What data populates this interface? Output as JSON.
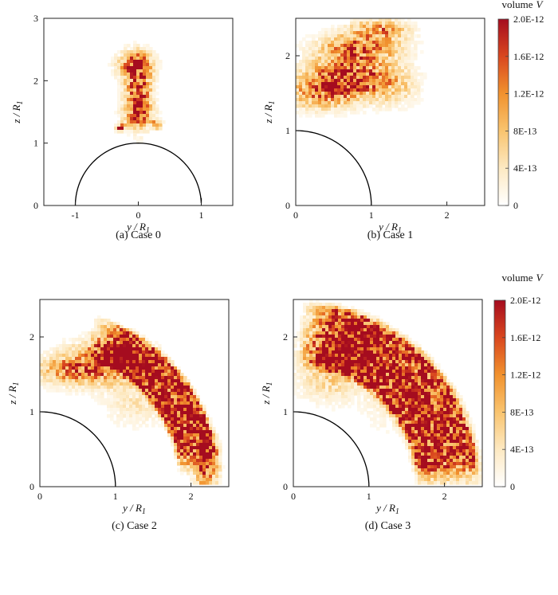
{
  "chart_data": [
    {
      "type": "heatmap",
      "caption": "(a) Case 0",
      "xlabel": "y / R",
      "ylabel": "z / R",
      "label_subscript": "1",
      "xlim": [
        -1.5,
        1.5
      ],
      "ylim": [
        0,
        3
      ],
      "xticks": [
        -1,
        0,
        1
      ],
      "yticks": [
        0,
        1,
        2,
        3
      ],
      "boundary": {
        "shape": "semicircle",
        "radius": 1,
        "theta_deg": [
          0,
          180
        ]
      },
      "blobs": [
        {
          "y": 0.0,
          "z": 1.8,
          "sy": 0.13,
          "sz": 0.32,
          "peak": 2e-12
        },
        {
          "y": -0.05,
          "z": 2.25,
          "sy": 0.18,
          "sz": 0.14,
          "peak": 1.6e-12
        },
        {
          "y": 0.0,
          "z": 1.45,
          "sy": 0.16,
          "sz": 0.12,
          "peak": 1e-12
        },
        {
          "y": -0.28,
          "z": 1.25,
          "sy": 0.05,
          "sz": 0.04,
          "peak": 1.8e-12
        },
        {
          "y": 0.28,
          "z": 1.3,
          "sy": 0.06,
          "sz": 0.05,
          "peak": 1e-12
        }
      ],
      "colorbar": false
    },
    {
      "type": "heatmap",
      "caption": "(b) Case 1",
      "xlabel": "y / R",
      "ylabel": "z / R",
      "label_subscript": "1",
      "xlim": [
        0,
        2.5
      ],
      "ylim": [
        0,
        2.5
      ],
      "xticks": [
        0,
        1,
        2
      ],
      "yticks": [
        0,
        1,
        2
      ],
      "boundary": {
        "shape": "quarter-circle",
        "radius": 1,
        "theta_deg": [
          0,
          90
        ]
      },
      "blobs": [
        {
          "y": 0.7,
          "z": 1.7,
          "sy": 0.35,
          "sz": 0.18,
          "peak": 2e-12
        },
        {
          "y": 0.85,
          "z": 2.1,
          "sy": 0.35,
          "sz": 0.13,
          "peak": 1.5e-12
        },
        {
          "y": 0.3,
          "z": 1.5,
          "sy": 0.3,
          "sz": 0.15,
          "peak": 1e-12
        },
        {
          "y": 1.3,
          "z": 1.6,
          "sy": 0.22,
          "sz": 0.18,
          "peak": 6e-13
        },
        {
          "y": 1.1,
          "z": 2.35,
          "sy": 0.25,
          "sz": 0.09,
          "peak": 1.2e-12
        }
      ],
      "colorbar": true
    },
    {
      "type": "heatmap",
      "caption": "(c) Case 2",
      "xlabel": "y / R",
      "ylabel": "z / R",
      "label_subscript": "1",
      "xlim": [
        0,
        2.5
      ],
      "ylim": [
        0,
        2.5
      ],
      "xticks": [
        0,
        1,
        2
      ],
      "yticks": [
        0,
        1,
        2
      ],
      "boundary": {
        "shape": "quarter-circle",
        "radius": 1,
        "theta_deg": [
          0,
          90
        ]
      },
      "band": {
        "r_inner": 1.9,
        "r_outer": 2.35,
        "theta_deg": [
          10,
          65
        ],
        "peak": 2e-12
      },
      "blobs": [
        {
          "y": 0.9,
          "z": 1.65,
          "sy": 0.35,
          "sz": 0.18,
          "peak": 1.8e-12
        },
        {
          "y": 0.35,
          "z": 1.55,
          "sy": 0.25,
          "sz": 0.13,
          "peak": 1e-12
        },
        {
          "y": 2.2,
          "z": 0.3,
          "sy": 0.1,
          "sz": 0.25,
          "peak": 1.7e-12
        },
        {
          "y": 1.3,
          "z": 1.1,
          "sy": 0.3,
          "sz": 0.2,
          "peak": 4e-13
        }
      ],
      "colorbar": false
    },
    {
      "type": "heatmap",
      "caption": "(d) Case 3",
      "xlabel": "y / R",
      "ylabel": "z / R",
      "label_subscript": "1",
      "xlim": [
        0,
        2.5
      ],
      "ylim": [
        0,
        2.5
      ],
      "xticks": [
        0,
        1,
        2
      ],
      "yticks": [
        0,
        1,
        2
      ],
      "boundary": {
        "shape": "quarter-circle",
        "radius": 1,
        "theta_deg": [
          0,
          90
        ]
      },
      "band": {
        "r_inner": 1.7,
        "r_outer": 2.4,
        "theta_deg": [
          5,
          80
        ],
        "peak": 2e-12
      },
      "blobs": [
        {
          "y": 0.6,
          "z": 1.8,
          "sy": 0.3,
          "sz": 0.2,
          "peak": 1.2e-12
        },
        {
          "y": 0.5,
          "z": 1.4,
          "sy": 0.3,
          "sz": 0.2,
          "peak": 5e-13
        },
        {
          "y": 1.3,
          "z": 1.1,
          "sy": 0.25,
          "sz": 0.25,
          "peak": 3e-13
        }
      ],
      "colorbar": true
    }
  ],
  "colorbar": {
    "title": "volume",
    "title_var": "V",
    "range": [
      0,
      2e-12
    ],
    "ticks": [
      {
        "value": 2e-12,
        "label": "2.0E-12"
      },
      {
        "value": 1.6e-12,
        "label": "1.6E-12"
      },
      {
        "value": 1.2e-12,
        "label": "1.2E-12"
      },
      {
        "value": 8e-13,
        "label": "8E-13"
      },
      {
        "value": 4e-13,
        "label": "4E-13"
      },
      {
        "value": 0,
        "label": "0"
      }
    ],
    "colors": [
      "#ffffff",
      "#fde9c2",
      "#f9c46f",
      "#f1922e",
      "#d9471f",
      "#a50c1f"
    ]
  }
}
